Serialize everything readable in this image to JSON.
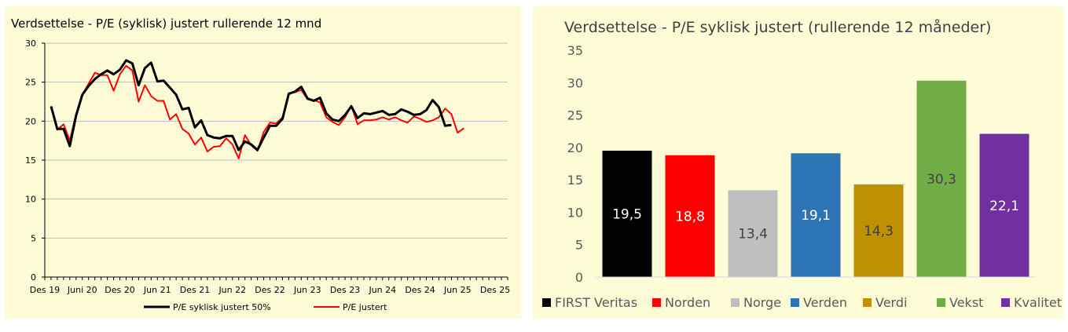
{
  "chart_data": [
    {
      "type": "line",
      "title": "Verdsettelse - P/E (syklisk) justert rullerende 12 mnd",
      "xlabel": "",
      "ylabel": "",
      "ylim": [
        0,
        30
      ],
      "yticks": [
        "0",
        "5",
        "10",
        "15",
        "20",
        "25",
        "30"
      ],
      "x_tick_labels": [
        "Des 19",
        "Juni 20",
        "Des 20",
        "Jun 21",
        "Des 21",
        "Jun 22",
        "Des 22",
        "Jun 23",
        "Des 23",
        "Jun 24",
        "Des 24",
        "Jun 25",
        "Des 25"
      ],
      "x_axis_months": 74,
      "grid": true,
      "legend_position": "bottom",
      "series": [
        {
          "name": "P/E syklisk justert 50%",
          "color": "#000000",
          "values": [
            21.9,
            19.0,
            19.0,
            16.8,
            20.7,
            23.4,
            24.5,
            25.4,
            26.0,
            26.5,
            26.0,
            26.6,
            27.8,
            27.4,
            24.6,
            26.8,
            27.5,
            25.1,
            25.2,
            24.3,
            23.4,
            21.5,
            21.7,
            19.2,
            20.1,
            18.2,
            17.9,
            17.8,
            18.1,
            18.1,
            16.3,
            17.4,
            17.0,
            16.3,
            17.9,
            19.4,
            19.4,
            20.3,
            23.5,
            23.8,
            24.4,
            22.9,
            22.6,
            23.0,
            21.0,
            20.2,
            20.0,
            20.8,
            21.9,
            20.4,
            21.0,
            20.9,
            21.1,
            21.3,
            20.8,
            20.9,
            21.5,
            21.2,
            20.8,
            20.9,
            21.4,
            22.7,
            21.8,
            19.4,
            19.5
          ],
          "visible_points": 65
        },
        {
          "name": "P/E justert",
          "color": "#ff0000",
          "values": [
            21.9,
            18.9,
            19.6,
            17.5,
            20.9,
            23.4,
            24.8,
            26.2,
            25.9,
            25.9,
            23.9,
            26.0,
            27.1,
            26.5,
            22.5,
            24.6,
            23.2,
            22.6,
            22.6,
            20.2,
            20.9,
            19.0,
            18.4,
            17.0,
            17.9,
            16.1,
            16.7,
            16.8,
            17.8,
            17.0,
            15.2,
            18.2,
            16.9,
            16.2,
            18.6,
            19.8,
            19.7,
            20.5,
            23.6,
            23.7,
            24.0,
            22.8,
            22.7,
            22.4,
            20.5,
            19.9,
            19.5,
            20.5,
            22.0,
            19.6,
            20.1,
            20.1,
            20.2,
            20.5,
            20.2,
            20.5,
            20.1,
            19.8,
            20.6,
            20.3,
            19.9,
            20.1,
            20.5,
            21.6,
            20.9,
            18.5,
            19.1
          ],
          "visible_points": 67
        }
      ]
    },
    {
      "type": "bar",
      "title": "Verdsettelse - P/E syklisk justert (rullerende 12 måneder)",
      "xlabel": "",
      "ylabel": "",
      "ylim": [
        0,
        35
      ],
      "yticks": [
        "0",
        "5",
        "10",
        "15",
        "20",
        "25",
        "30",
        "35"
      ],
      "grid": false,
      "legend_position": "bottom",
      "categories": [
        "FIRST Veritas",
        "Norden",
        "Norge",
        "Verden",
        "Verdi",
        "Vekst",
        "Kvalitet"
      ],
      "values": [
        19.5,
        18.8,
        13.4,
        19.1,
        14.3,
        30.3,
        22.1
      ],
      "value_labels": [
        "19,5",
        "18,8",
        "13,4",
        "19,1",
        "14,3",
        "30,3",
        "22,1"
      ],
      "colors": [
        "#000000",
        "#ff0000",
        "#bfbfbf",
        "#2e75b6",
        "#bf9000",
        "#70ad47",
        "#7030a0"
      ],
      "label_colors": [
        "#ffffff",
        "#ffffff",
        "#404040",
        "#ffffff",
        "#404040",
        "#404040",
        "#ffffff"
      ]
    }
  ]
}
